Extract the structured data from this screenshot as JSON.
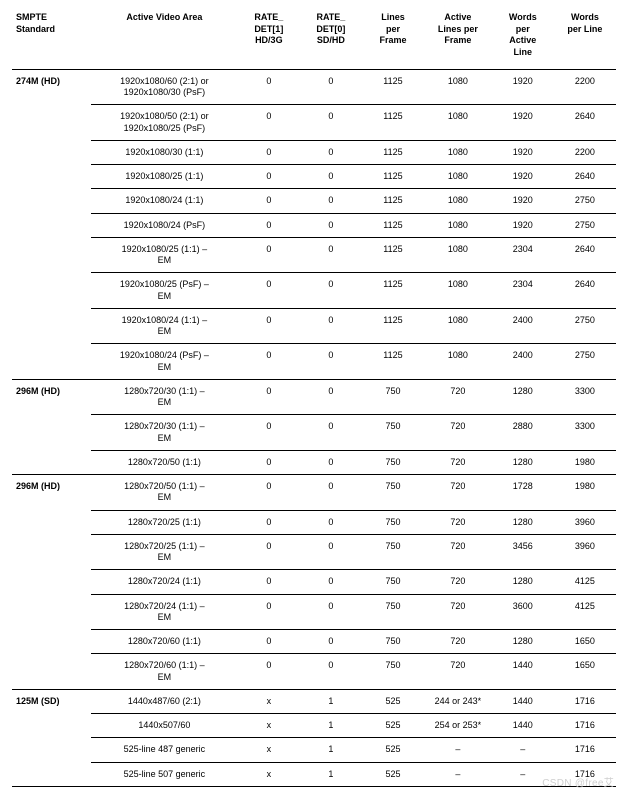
{
  "columns": [
    "SMPTE\nStandard",
    "Active Video Area",
    "RATE_\nDET[1]\nHD/3G",
    "RATE_\nDET[0]\nSD/HD",
    "Lines\nper\nFrame",
    "Active\nLines per\nFrame",
    "Words\nper\nActive\nLine",
    "Words\nper Line"
  ],
  "groups": [
    {
      "standard": "274M (HD)",
      "rows": [
        {
          "va": "1920x1080/60 (2:1) or\n1920x1080/30 (PsF)",
          "r1": "0",
          "r0": "0",
          "lpf": "1125",
          "alpf": "1080",
          "wpal": "1920",
          "wpl": "2200"
        },
        {
          "va": "1920x1080/50 (2:1) or\n1920x1080/25 (PsF)",
          "r1": "0",
          "r0": "0",
          "lpf": "1125",
          "alpf": "1080",
          "wpal": "1920",
          "wpl": "2640"
        },
        {
          "va": "1920x1080/30 (1:1)",
          "r1": "0",
          "r0": "0",
          "lpf": "1125",
          "alpf": "1080",
          "wpal": "1920",
          "wpl": "2200"
        },
        {
          "va": "1920x1080/25 (1:1)",
          "r1": "0",
          "r0": "0",
          "lpf": "1125",
          "alpf": "1080",
          "wpal": "1920",
          "wpl": "2640"
        },
        {
          "va": "1920x1080/24 (1:1)",
          "r1": "0",
          "r0": "0",
          "lpf": "1125",
          "alpf": "1080",
          "wpal": "1920",
          "wpl": "2750"
        },
        {
          "va": "1920x1080/24 (PsF)",
          "r1": "0",
          "r0": "0",
          "lpf": "1125",
          "alpf": "1080",
          "wpal": "1920",
          "wpl": "2750"
        },
        {
          "va": "1920x1080/25 (1:1) –\nEM",
          "r1": "0",
          "r0": "0",
          "lpf": "1125",
          "alpf": "1080",
          "wpal": "2304",
          "wpl": "2640"
        },
        {
          "va": "1920x1080/25 (PsF) –\nEM",
          "r1": "0",
          "r0": "0",
          "lpf": "1125",
          "alpf": "1080",
          "wpal": "2304",
          "wpl": "2640"
        },
        {
          "va": "1920x1080/24 (1:1) –\nEM",
          "r1": "0",
          "r0": "0",
          "lpf": "1125",
          "alpf": "1080",
          "wpal": "2400",
          "wpl": "2750"
        },
        {
          "va": "1920x1080/24 (PsF) –\nEM",
          "r1": "0",
          "r0": "0",
          "lpf": "1125",
          "alpf": "1080",
          "wpal": "2400",
          "wpl": "2750"
        }
      ]
    },
    {
      "standard": "296M (HD)",
      "rows": [
        {
          "va": "1280x720/30 (1:1) –\nEM",
          "r1": "0",
          "r0": "0",
          "lpf": "750",
          "alpf": "720",
          "wpal": "1280",
          "wpl": "3300"
        },
        {
          "va": "1280x720/30 (1:1) –\nEM",
          "r1": "0",
          "r0": "0",
          "lpf": "750",
          "alpf": "720",
          "wpal": "2880",
          "wpl": "3300"
        },
        {
          "va": "1280x720/50 (1:1)",
          "r1": "0",
          "r0": "0",
          "lpf": "750",
          "alpf": "720",
          "wpal": "1280",
          "wpl": "1980"
        }
      ]
    },
    {
      "standard": "296M (HD)",
      "rows": [
        {
          "va": "1280x720/50 (1:1) –\nEM",
          "r1": "0",
          "r0": "0",
          "lpf": "750",
          "alpf": "720",
          "wpal": "1728",
          "wpl": "1980"
        },
        {
          "va": "1280x720/25 (1:1)",
          "r1": "0",
          "r0": "0",
          "lpf": "750",
          "alpf": "720",
          "wpal": "1280",
          "wpl": "3960"
        },
        {
          "va": "1280x720/25 (1:1) –\nEM",
          "r1": "0",
          "r0": "0",
          "lpf": "750",
          "alpf": "720",
          "wpal": "3456",
          "wpl": "3960"
        },
        {
          "va": "1280x720/24 (1:1)",
          "r1": "0",
          "r0": "0",
          "lpf": "750",
          "alpf": "720",
          "wpal": "1280",
          "wpl": "4125"
        },
        {
          "va": "1280x720/24 (1:1) –\nEM",
          "r1": "0",
          "r0": "0",
          "lpf": "750",
          "alpf": "720",
          "wpal": "3600",
          "wpl": "4125"
        },
        {
          "va": "1280x720/60 (1:1)",
          "r1": "0",
          "r0": "0",
          "lpf": "750",
          "alpf": "720",
          "wpal": "1280",
          "wpl": "1650"
        },
        {
          "va": "1280x720/60 (1:1) –\nEM",
          "r1": "0",
          "r0": "0",
          "lpf": "750",
          "alpf": "720",
          "wpal": "1440",
          "wpl": "1650"
        }
      ]
    },
    {
      "standard": "125M (SD)",
      "rows": [
        {
          "va": "1440x487/60 (2:1)",
          "r1": "x",
          "r0": "1",
          "lpf": "525",
          "alpf": "244 or 243*",
          "wpal": "1440",
          "wpl": "1716"
        },
        {
          "va": "1440x507/60",
          "r1": "x",
          "r0": "1",
          "lpf": "525",
          "alpf": "254 or 253*",
          "wpal": "1440",
          "wpl": "1716"
        },
        {
          "va": "525-line 487 generic",
          "r1": "x",
          "r0": "1",
          "lpf": "525",
          "alpf": "–",
          "wpal": "–",
          "wpl": "1716"
        },
        {
          "va": "525-line 507 generic",
          "r1": "x",
          "r0": "1",
          "lpf": "525",
          "alpf": "–",
          "wpal": "–",
          "wpl": "1716"
        }
      ]
    }
  ],
  "watermark": "CSDN @free艾",
  "colors": {
    "text": "#000000",
    "bg": "#ffffff",
    "watermark": "#cfcfcf"
  },
  "col_classes": [
    "col-std",
    "col-va",
    "col-r1",
    "col-r0",
    "col-lpf",
    "col-alpf",
    "col-wpal",
    "col-wpl"
  ]
}
